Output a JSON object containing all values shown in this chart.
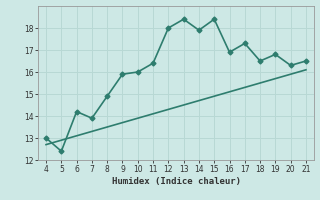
{
  "title": "",
  "xlabel": "Humidex (Indice chaleur)",
  "ylabel": "",
  "line_x": [
    4,
    5,
    6,
    7,
    8,
    9,
    10,
    11,
    12,
    13,
    14,
    15,
    16,
    17,
    18,
    19,
    20,
    21
  ],
  "line_y": [
    13.0,
    12.4,
    14.2,
    13.9,
    14.9,
    15.9,
    16.0,
    16.4,
    18.0,
    18.4,
    17.9,
    18.4,
    16.9,
    17.3,
    16.5,
    16.8,
    16.3,
    16.5
  ],
  "trend_x": [
    4,
    21
  ],
  "trend_y": [
    12.7,
    16.1
  ],
  "line_color": "#2e7d6e",
  "bg_color": "#cde8e5",
  "grid_color": "#b8d8d4",
  "text_color": "#333333",
  "ylim": [
    12,
    19
  ],
  "xlim": [
    3.5,
    21.5
  ],
  "yticks": [
    12,
    13,
    14,
    15,
    16,
    17,
    18
  ],
  "xticks": [
    4,
    5,
    6,
    7,
    8,
    9,
    10,
    11,
    12,
    13,
    14,
    15,
    16,
    17,
    18,
    19,
    20,
    21
  ],
  "marker": "D",
  "marker_size": 2.5,
  "line_width": 1.2
}
